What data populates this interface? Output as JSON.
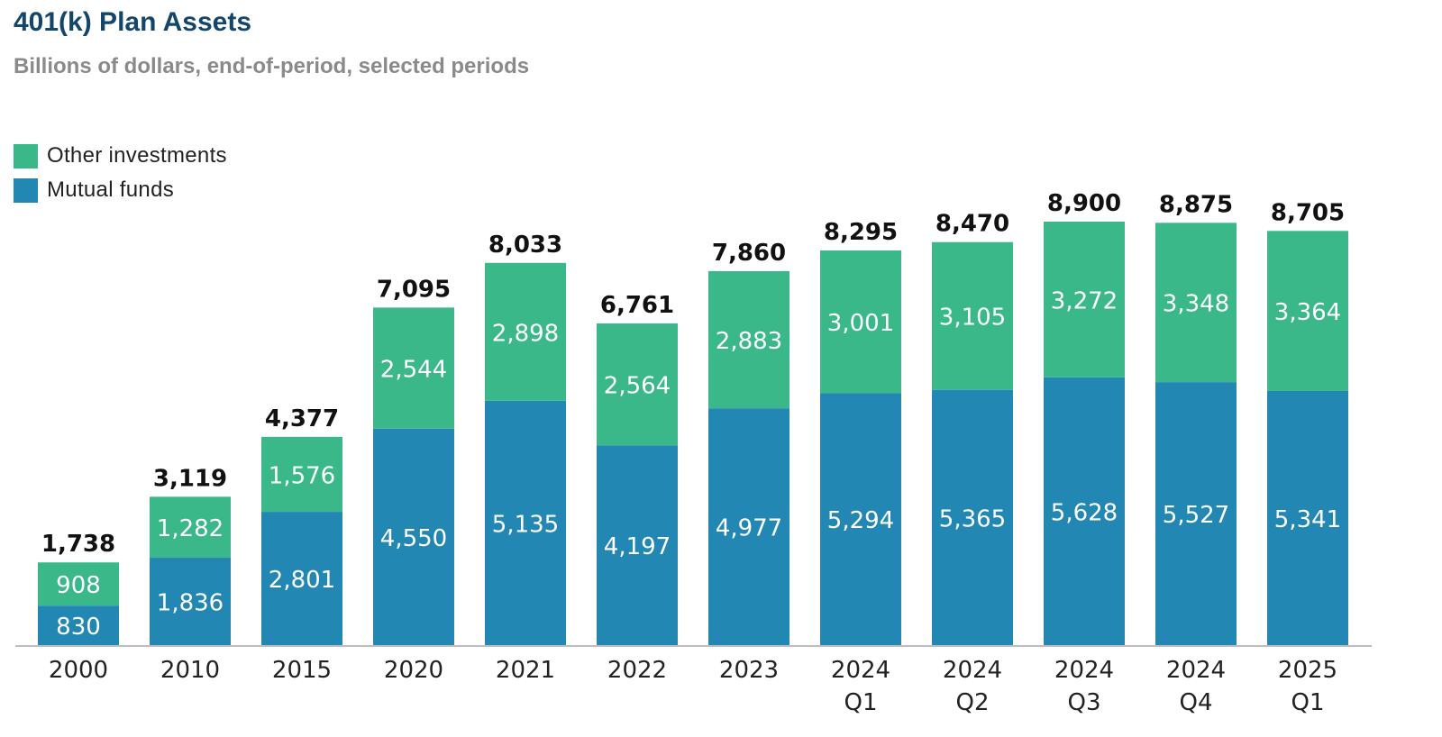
{
  "colors": {
    "other": "#3ab88a",
    "mutual": "#2387b3",
    "title": "#14466b",
    "subtitle": "#8a8a8a",
    "axis": "#bdbdbd",
    "total_label": "#111111",
    "segment_label": "#ffffff"
  },
  "chart_data": {
    "type": "bar",
    "stacked": true,
    "title": "401(k) Plan Assets",
    "subtitle": "Billions of dollars, end-of-period, selected periods",
    "xlabel": "",
    "ylabel": "",
    "ylim": [
      0,
      8900
    ],
    "grid": false,
    "legend_position": "top-left",
    "categories": [
      [
        "2000"
      ],
      [
        "2010"
      ],
      [
        "2015"
      ],
      [
        "2020"
      ],
      [
        "2021"
      ],
      [
        "2022"
      ],
      [
        "2023"
      ],
      [
        "2024",
        "Q1"
      ],
      [
        "2024",
        "Q2"
      ],
      [
        "2024",
        "Q3"
      ],
      [
        "2024",
        "Q4"
      ],
      [
        "2025",
        "Q1"
      ]
    ],
    "series": [
      {
        "name": "Mutual funds",
        "color_key": "mutual",
        "values": [
          830,
          1836,
          2801,
          4550,
          5135,
          4197,
          4977,
          5294,
          5365,
          5628,
          5527,
          5341
        ],
        "labels": [
          "830",
          "1,836",
          "2,801",
          "4,550",
          "5,135",
          "4,197",
          "4,977",
          "5,294",
          "5,365",
          "5,628",
          "5,527",
          "5,341"
        ]
      },
      {
        "name": "Other investments",
        "color_key": "other",
        "values": [
          908,
          1282,
          1576,
          2544,
          2898,
          2564,
          2883,
          3001,
          3105,
          3272,
          3348,
          3364
        ],
        "labels": [
          "908",
          "1,282",
          "1,576",
          "2,544",
          "2,898",
          "2,564",
          "2,883",
          "3,001",
          "3,105",
          "3,272",
          "3,348",
          "3,364"
        ]
      }
    ],
    "totals": [
      1738,
      3119,
      4377,
      7095,
      8033,
      6761,
      7860,
      8295,
      8470,
      8900,
      8875,
      8705
    ],
    "total_labels": [
      "1,738",
      "3,119",
      "4,377",
      "7,095",
      "8,033",
      "6,761",
      "7,860",
      "8,295",
      "8,470",
      "8,900",
      "8,875",
      "8,705"
    ]
  }
}
